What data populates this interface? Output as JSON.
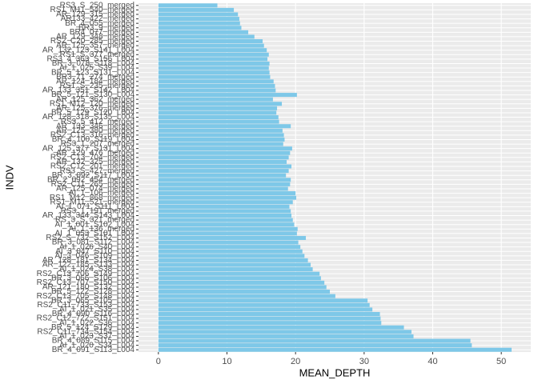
{
  "chart_data": {
    "type": "barh",
    "x_label": "MEAN_DEPTH",
    "y_label": "INDV",
    "categories": [
      "RS3_S_250_merged",
      "RS1_M11_540_merged",
      "AR_129_315_merged",
      "AR133_422_merged",
      "BR_4_055_merged",
      "BR3_9_merged",
      "BR4_077_merged",
      "AR_129_348_merged",
      "RS2_C20_285_merged",
      "AR_125_357_merged",
      "AR_132_123_S141_L004",
      "RS1_S_377_merged",
      "RS3_4_363_S156_L004",
      "BR_3_078_S118_L004",
      "AI_1_025_S39_L004",
      "BR_5_123_S131_L004",
      "BR3_71_274_merged",
      "AR_124_184_merged",
      "RS1_S_235_merged",
      "AR_133_351_S142_L004",
      "BR_5_121_S130_L004",
      "AR_125_362_merged",
      "RS1_M12_120_merged",
      "AR_125_376_merged",
      "BR_5_129_S120_L004",
      "AR_128_318_S135_L004",
      "RS3_5_412_merged",
      "AR_133_346_merged",
      "AR_125_380_merged",
      "RS2_C13_316_merged",
      "BR_4_100_S119_L004",
      "RS3_1_207_merged",
      "AR_125_377_S131_L004",
      "AR_129_476_merged",
      "RS2_C13_704_merged",
      "AR_132_325_merged",
      "RS2_C12_201_merged",
      "RS3_S_427_merged",
      "BR_3_092_S117_L004",
      "BR_2_092_454_merged",
      "RS2_C11_265_merged",
      "AR_125_074_merged",
      "AI_1_106_merged",
      "RS1_M12_868_merged",
      "RS1_M11_521_merged",
      "AI_1_071_S111_L004",
      "RS3_1_191_merged",
      "AR_133_344_S143_L004",
      "RS_3_S_321_merged",
      "AI_1_001_S102_L004",
      "AI_1_136_merged",
      "AI_1_053_S101_L004",
      "RS2_S_732_S152_L004",
      "BR_3_081_S112_L004",
      "AI_1_026_S40_L004",
      "AI_3_047_S110_L004",
      "AI_3_046_S109_L004",
      "AR_128_181_S134_L004",
      "AR_122_185_S133_L004",
      "AI_1_024_S38_L004",
      "RS2_C13_706_S149_L004",
      "BR_3_066_S106_L004",
      "RS2_C13_707_S150_L004",
      "AR_121_180_S132_L004",
      "BR_5_122_S128_L004",
      "RS2_C13_705_S148_L004",
      "BR_3_065_S105_L004",
      "RS2_C11_733_S153_L004",
      "AI_1_021_S35_L004",
      "BR_4_090_S116_L004",
      "RS2_C12_722_S151_L004",
      "AI_1_022_S36_L004",
      "BR_5_124_S129_L004",
      "RS2_C11_734_S154_L004",
      "AI_1_023_S37_L004",
      "BR_4_089_S115_L004",
      "AI_1_020_S34_L004",
      "BR_4_091_S113_L004"
    ],
    "values": [
      8.6,
      11,
      11.6,
      11.8,
      11.9,
      12.1,
      13.1,
      14,
      15.2,
      15.4,
      15.8,
      16.1,
      15.9,
      16.2,
      16.1,
      16.2,
      16.3,
      16.8,
      17,
      17.1,
      20.2,
      16.7,
      18,
      17.3,
      17.2,
      17.5,
      17.6,
      19.3,
      18.1,
      18.3,
      18.4,
      18.2,
      19.5,
      19.2,
      19,
      18.7,
      19.4,
      19,
      18.6,
      19.3,
      19.2,
      18.9,
      20,
      20.1,
      19.6,
      19.1,
      19.3,
      19.4,
      19.6,
      19.8,
      20.3,
      20.2,
      21.5,
      20.4,
      20.7,
      21,
      21.3,
      21.8,
      22.2,
      22.5,
      23.5,
      23.7,
      24.2,
      24.5,
      25,
      25.8,
      30.5,
      30.8,
      31.2,
      32.3,
      32.4,
      32.5,
      35.8,
      36.9,
      37.2,
      45.5,
      45.7,
      51.5
    ],
    "color": "#7ec8e8",
    "xlim": [
      -2.9,
      54.3
    ],
    "xticks": [
      0,
      10,
      20,
      30,
      40,
      50
    ],
    "grid": true
  }
}
